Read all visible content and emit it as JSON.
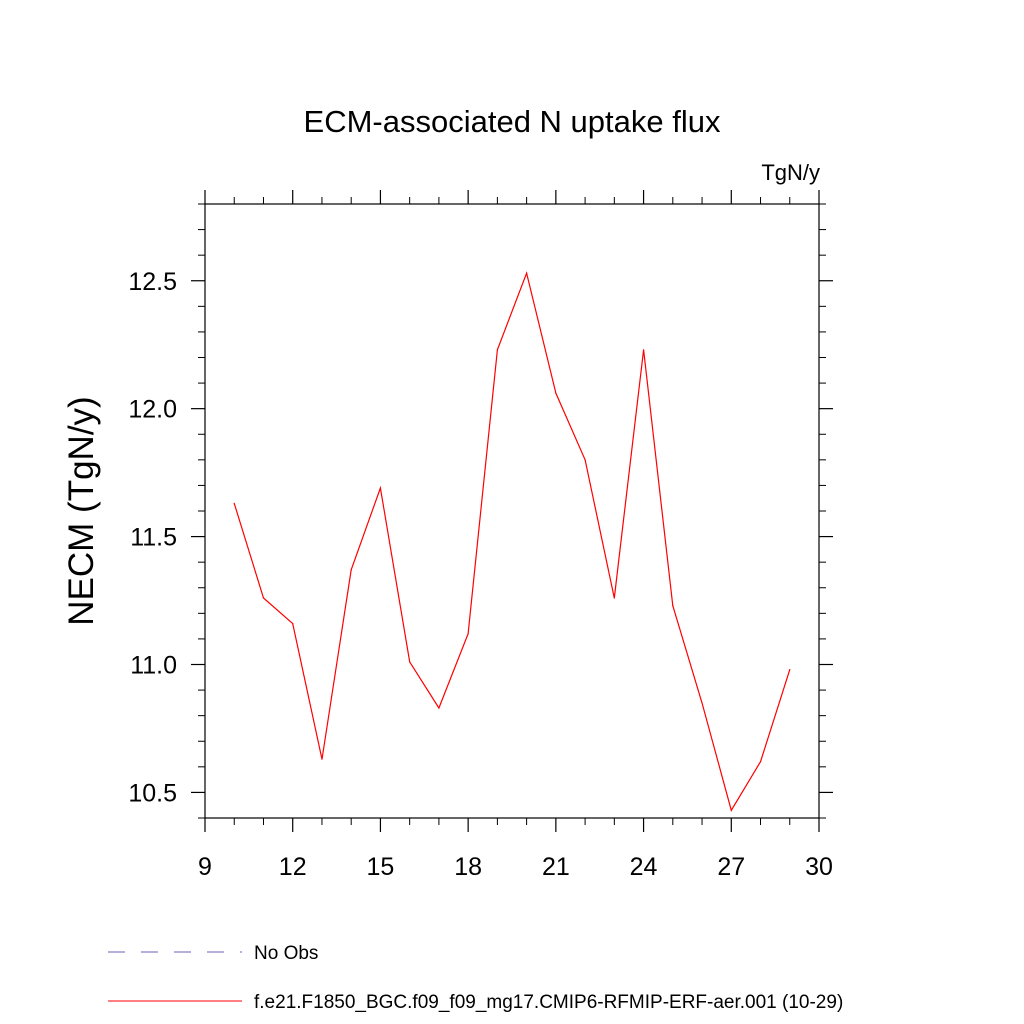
{
  "chart_data": {
    "type": "line",
    "title": "ECM-associated N uptake flux",
    "units": "TgN/y",
    "xlabel": "",
    "ylabel": "NECM  (TgN/y)",
    "xlim": [
      9,
      30
    ],
    "ylim": [
      10.4,
      12.8
    ],
    "xticks": [
      9,
      12,
      15,
      18,
      21,
      24,
      27,
      30
    ],
    "xtick_labels": [
      "9",
      "12",
      "15",
      "18",
      "21",
      "24",
      "27",
      "30"
    ],
    "yticks": [
      10.5,
      11.0,
      11.5,
      12.0,
      12.5
    ],
    "ytick_labels": [
      "10.5",
      "11.0",
      "11.5",
      "12.0",
      "12.5"
    ],
    "grid": false,
    "legend_position": "bottom",
    "series": [
      {
        "name": "f.e21.F1850_BGC.f09_f09_mg17.CMIP6-RFMIP-ERF-aer.001 (10-29)",
        "color": "#ff0000",
        "style": "solid",
        "x": [
          10,
          11,
          12,
          13,
          14,
          15,
          16,
          17,
          18,
          19,
          20,
          21,
          22,
          23,
          24,
          25,
          26,
          27,
          28,
          29
        ],
        "values": [
          11.63,
          11.26,
          11.16,
          10.63,
          11.37,
          11.69,
          11.01,
          10.83,
          11.12,
          12.23,
          12.53,
          12.06,
          11.8,
          11.26,
          12.23,
          11.23,
          10.85,
          10.43,
          10.62,
          10.98
        ]
      },
      {
        "name": "No Obs",
        "color": "#6b5fb3",
        "style": "dashed",
        "x": [],
        "values": []
      }
    ]
  }
}
